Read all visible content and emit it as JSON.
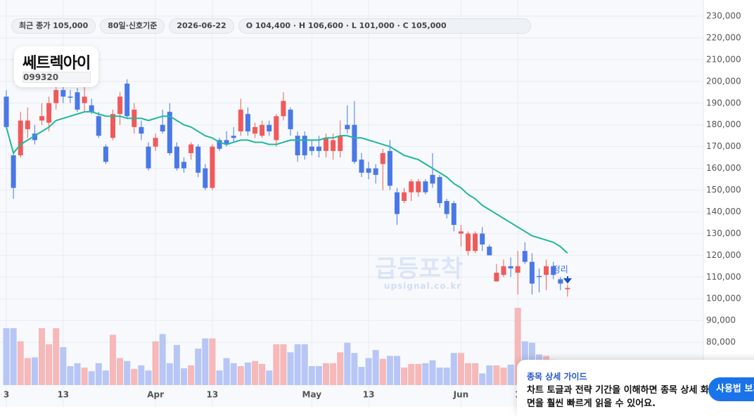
{
  "chart_data": {
    "type": "candlestick",
    "title": "쎄트렉아이",
    "subtitle": "099320",
    "chips": [
      "최근 종가 105,000",
      "80일·신호기준",
      "2026-06-22",
      "O 104,400 · H 106,600 · L 101,000 · C 105,000"
    ],
    "up_color": "#f05a5a",
    "down_color": "#4a78e8",
    "up_volume_color": "#f6b8b8",
    "down_volume_color": "#b7c6f5",
    "categories": [
      "3",
      null,
      null,
      null,
      null,
      null,
      null,
      null,
      "13",
      null,
      null,
      null,
      null,
      null,
      null,
      null,
      null,
      null,
      null,
      null,
      null,
      "Apr",
      null,
      null,
      null,
      null,
      null,
      null,
      null,
      "13",
      null,
      null,
      null,
      null,
      null,
      null,
      null,
      null,
      null,
      null,
      null,
      null,
      null,
      "May",
      null,
      null,
      null,
      null,
      null,
      null,
      null,
      "13",
      null,
      null,
      null,
      null,
      null,
      null,
      null,
      null,
      null,
      null,
      null,
      null,
      "Jun",
      null,
      null,
      null,
      null,
      null,
      null,
      null,
      "1",
      null,
      null,
      null,
      null,
      null,
      null,
      null
    ],
    "open": [
      193000,
      166000,
      166000,
      178000,
      176000,
      182000,
      181000,
      190000,
      196000,
      193000,
      195000,
      190000,
      189000,
      184000,
      170000,
      174000,
      185000,
      199000,
      179000,
      179000,
      170000,
      170000,
      180000,
      186000,
      170000,
      163000,
      167000,
      170000,
      160000,
      151000,
      173000,
      173000,
      175000,
      177000,
      185000,
      176000,
      175000,
      180000,
      173000,
      184000,
      187000,
      175000,
      175000,
      170000,
      170000,
      168000,
      168000,
      168000,
      180000,
      180000,
      164000,
      160000,
      160000,
      162000,
      168000,
      149000,
      145000,
      149000,
      149000,
      154000,
      157000,
      156000,
      145000,
      144000,
      130000,
      122000,
      122000,
      130000,
      124000,
      108000,
      111000,
      115000,
      112000,
      122000,
      117000,
      110500,
      111000,
      115000,
      109000,
      104400
    ],
    "high": [
      196000,
      167000,
      186000,
      188000,
      180000,
      190000,
      193000,
      199000,
      200000,
      196000,
      197000,
      199000,
      192000,
      186000,
      171000,
      187000,
      195000,
      201000,
      190000,
      182000,
      172000,
      176000,
      187000,
      190000,
      172000,
      165000,
      172000,
      171000,
      162000,
      171000,
      174000,
      177000,
      179000,
      192000,
      188000,
      181000,
      182000,
      182000,
      185000,
      195000,
      188000,
      177000,
      177000,
      173000,
      175000,
      176000,
      176000,
      182000,
      189000,
      191000,
      167000,
      163000,
      162000,
      169000,
      173000,
      151000,
      151000,
      155000,
      155000,
      155000,
      167000,
      157000,
      146000,
      145000,
      134000,
      131000,
      131000,
      133000,
      125000,
      116000,
      118000,
      119000,
      122000,
      126000,
      121000,
      114000,
      118000,
      117000,
      110000,
      106600
    ],
    "low": [
      178000,
      146000,
      165000,
      174000,
      171000,
      180000,
      177000,
      187000,
      190000,
      190000,
      186000,
      186000,
      185000,
      174000,
      162000,
      173000,
      180000,
      183000,
      176000,
      173000,
      159000,
      168000,
      176000,
      166000,
      159000,
      158000,
      164000,
      156000,
      150000,
      150000,
      168000,
      170000,
      172000,
      175000,
      175000,
      174000,
      174000,
      175000,
      170000,
      182000,
      175000,
      163000,
      164000,
      166000,
      165000,
      165000,
      164000,
      165000,
      176000,
      162000,
      156000,
      155000,
      153000,
      150000,
      150000,
      134000,
      144000,
      145000,
      147000,
      148000,
      151000,
      142000,
      137000,
      131000,
      124000,
      120000,
      121000,
      122000,
      120000,
      108000,
      110000,
      110000,
      102000,
      116000,
      102000,
      103000,
      104000,
      109000,
      104000,
      101000
    ],
    "close": [
      179000,
      151000,
      182000,
      182000,
      173000,
      184000,
      190000,
      196000,
      193000,
      192500,
      187000,
      193000,
      186000,
      175000,
      163000,
      185000,
      193000,
      184000,
      187000,
      176000,
      160000,
      174000,
      177000,
      167000,
      160000,
      160000,
      171000,
      158000,
      151000,
      170000,
      169000,
      171000,
      174000,
      187000,
      177000,
      179000,
      180000,
      177000,
      184000,
      191000,
      178000,
      166000,
      166000,
      168000,
      168000,
      174000,
      173000,
      175000,
      178000,
      163000,
      158000,
      158000,
      157000,
      167000,
      152000,
      139000,
      149000,
      154000,
      154000,
      149000,
      153000,
      144000,
      139000,
      134000,
      131000,
      130000,
      130000,
      125000,
      120000,
      112000,
      115000,
      114000,
      115000,
      117000,
      107000,
      110000,
      115000,
      111000,
      107000,
      105000
    ],
    "volume": [
      78,
      78,
      60,
      37,
      38,
      78,
      56,
      78,
      52,
      26,
      30,
      24,
      19,
      30,
      20,
      69,
      37,
      33,
      22,
      27,
      20,
      60,
      70,
      30,
      55,
      23,
      27,
      50,
      64,
      64,
      20,
      37,
      30,
      26,
      31,
      33,
      29,
      20,
      56,
      56,
      45,
      56,
      56,
      26,
      26,
      30,
      30,
      45,
      58,
      44,
      25,
      37,
      48,
      36,
      40,
      40,
      24,
      29,
      29,
      30,
      34,
      24,
      24,
      44,
      44,
      30,
      30,
      16,
      27,
      27,
      24,
      28,
      106,
      60,
      58,
      42,
      40,
      35,
      30,
      30
    ],
    "ma": {
      "color": "#1fb89a",
      "values": [
        179000,
        167000,
        171000,
        173000,
        175000,
        177000,
        179000,
        182000,
        183000,
        184000,
        185000,
        186000,
        186000,
        185000,
        184000,
        184000,
        184000,
        183000,
        183000,
        183000,
        182000,
        183000,
        184000,
        184000,
        182000,
        180000,
        179000,
        177000,
        175000,
        174000,
        172000,
        171000,
        172000,
        173000,
        173000,
        172000,
        172000,
        171000,
        171000,
        172000,
        173000,
        173000,
        173000,
        173000,
        173000,
        174000,
        174000,
        175000,
        175000,
        174000,
        174000,
        173000,
        172000,
        171000,
        170000,
        168000,
        166000,
        165000,
        164000,
        162000,
        160000,
        158000,
        156000,
        153000,
        151000,
        148000,
        146000,
        143000,
        141000,
        139000,
        137000,
        135000,
        133000,
        131000,
        129000,
        128000,
        127000,
        126000,
        124000,
        121000
      ]
    },
    "ylim": [
      60000,
      230000
    ],
    "yticks": [
      {
        "value": 80000,
        "label": "80,000"
      },
      {
        "value": 90000,
        "label": "90,000"
      },
      {
        "value": 100000,
        "label": "100,000"
      },
      {
        "value": 110000,
        "label": "110,000"
      },
      {
        "value": 120000,
        "label": "120,000"
      },
      {
        "value": 130000,
        "label": "130,000"
      },
      {
        "value": 140000,
        "label": "140,000"
      },
      {
        "value": 150000,
        "label": "150,000"
      },
      {
        "value": 160000,
        "label": "160,000"
      },
      {
        "value": 170000,
        "label": "170,000"
      },
      {
        "value": 180000,
        "label": "180,000"
      },
      {
        "value": 190000,
        "label": "190,000"
      },
      {
        "value": 200000,
        "label": "200,000"
      },
      {
        "value": 210000,
        "label": "210,000"
      },
      {
        "value": 220000,
        "label": "220,000"
      },
      {
        "value": 230000,
        "label": "230,000"
      }
    ],
    "grid": true,
    "annotations": [
      {
        "text": "정리",
        "index": 78
      }
    ],
    "watermark": {
      "title": "급등포착",
      "subtitle": "upsignal.co.kr"
    }
  },
  "guide": {
    "title": "종목 상세 가이드",
    "text": "차트 토글과 전략 기간을 이해하면 종목 상세 화면을 훨씬 빠르게 읽을 수 있어요.",
    "button": "사용법 보기"
  }
}
